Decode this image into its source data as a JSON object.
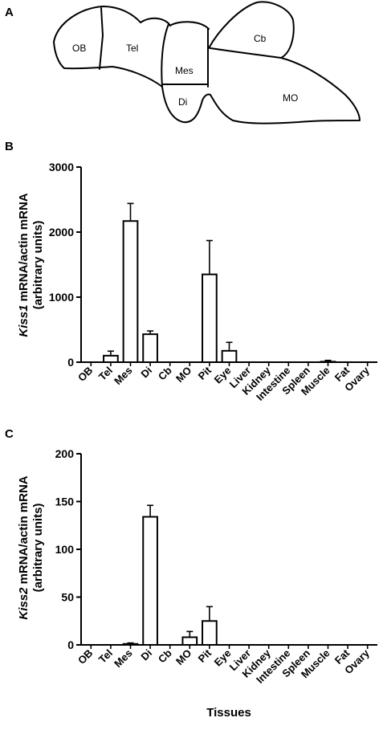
{
  "panels": {
    "a": {
      "label": "A",
      "regions": [
        "OB",
        "Tel",
        "Mes",
        "Di",
        "Cb",
        "MO"
      ]
    },
    "b": {
      "label": "B"
    },
    "c": {
      "label": "C"
    }
  },
  "chart_data": [
    {
      "type": "bar",
      "panel": "B",
      "categories": [
        "OB",
        "Tel",
        "Mes",
        "Di",
        "Cb",
        "MO",
        "Pit",
        "Eye",
        "Liver",
        "Kidney",
        "Intestine",
        "Spleen",
        "Muscle",
        "Fat",
        "Ovary"
      ],
      "values": [
        0,
        100,
        2170,
        430,
        0,
        0,
        1350,
        175,
        0,
        0,
        0,
        0,
        8,
        0,
        0
      ],
      "errors": [
        0,
        70,
        270,
        50,
        0,
        0,
        520,
        130,
        0,
        0,
        0,
        0,
        20,
        0,
        0
      ],
      "ylabel_gene": "Kiss1",
      "ylabel_rest": " mRNA/actin mRNA",
      "ylabel_units": "(arbitrary units)",
      "ylim": [
        0,
        3000
      ],
      "yticks": [
        0,
        1000,
        2000,
        3000
      ],
      "grid": false
    },
    {
      "type": "bar",
      "panel": "C",
      "categories": [
        "OB",
        "Tel",
        "Mes",
        "Di",
        "Cb",
        "MO",
        "Pit",
        "Eye",
        "Liver",
        "Kidney",
        "Intestine",
        "Spleen",
        "Muscle",
        "Fat",
        "Ovary"
      ],
      "values": [
        0,
        0,
        1,
        134,
        0,
        8,
        25,
        0,
        0,
        0,
        0,
        0,
        0,
        0,
        0
      ],
      "errors": [
        0,
        0,
        1,
        12,
        0,
        6,
        15,
        0,
        0,
        0,
        0,
        0,
        0,
        0,
        0
      ],
      "ylabel_gene": "Kiss2",
      "ylabel_rest": " mRNA/actin mRNA",
      "ylabel_units": "(arbitrary units)",
      "xlabel": "Tissues",
      "ylim": [
        0,
        200
      ],
      "yticks": [
        0,
        50,
        100,
        150,
        200
      ],
      "grid": false
    }
  ]
}
